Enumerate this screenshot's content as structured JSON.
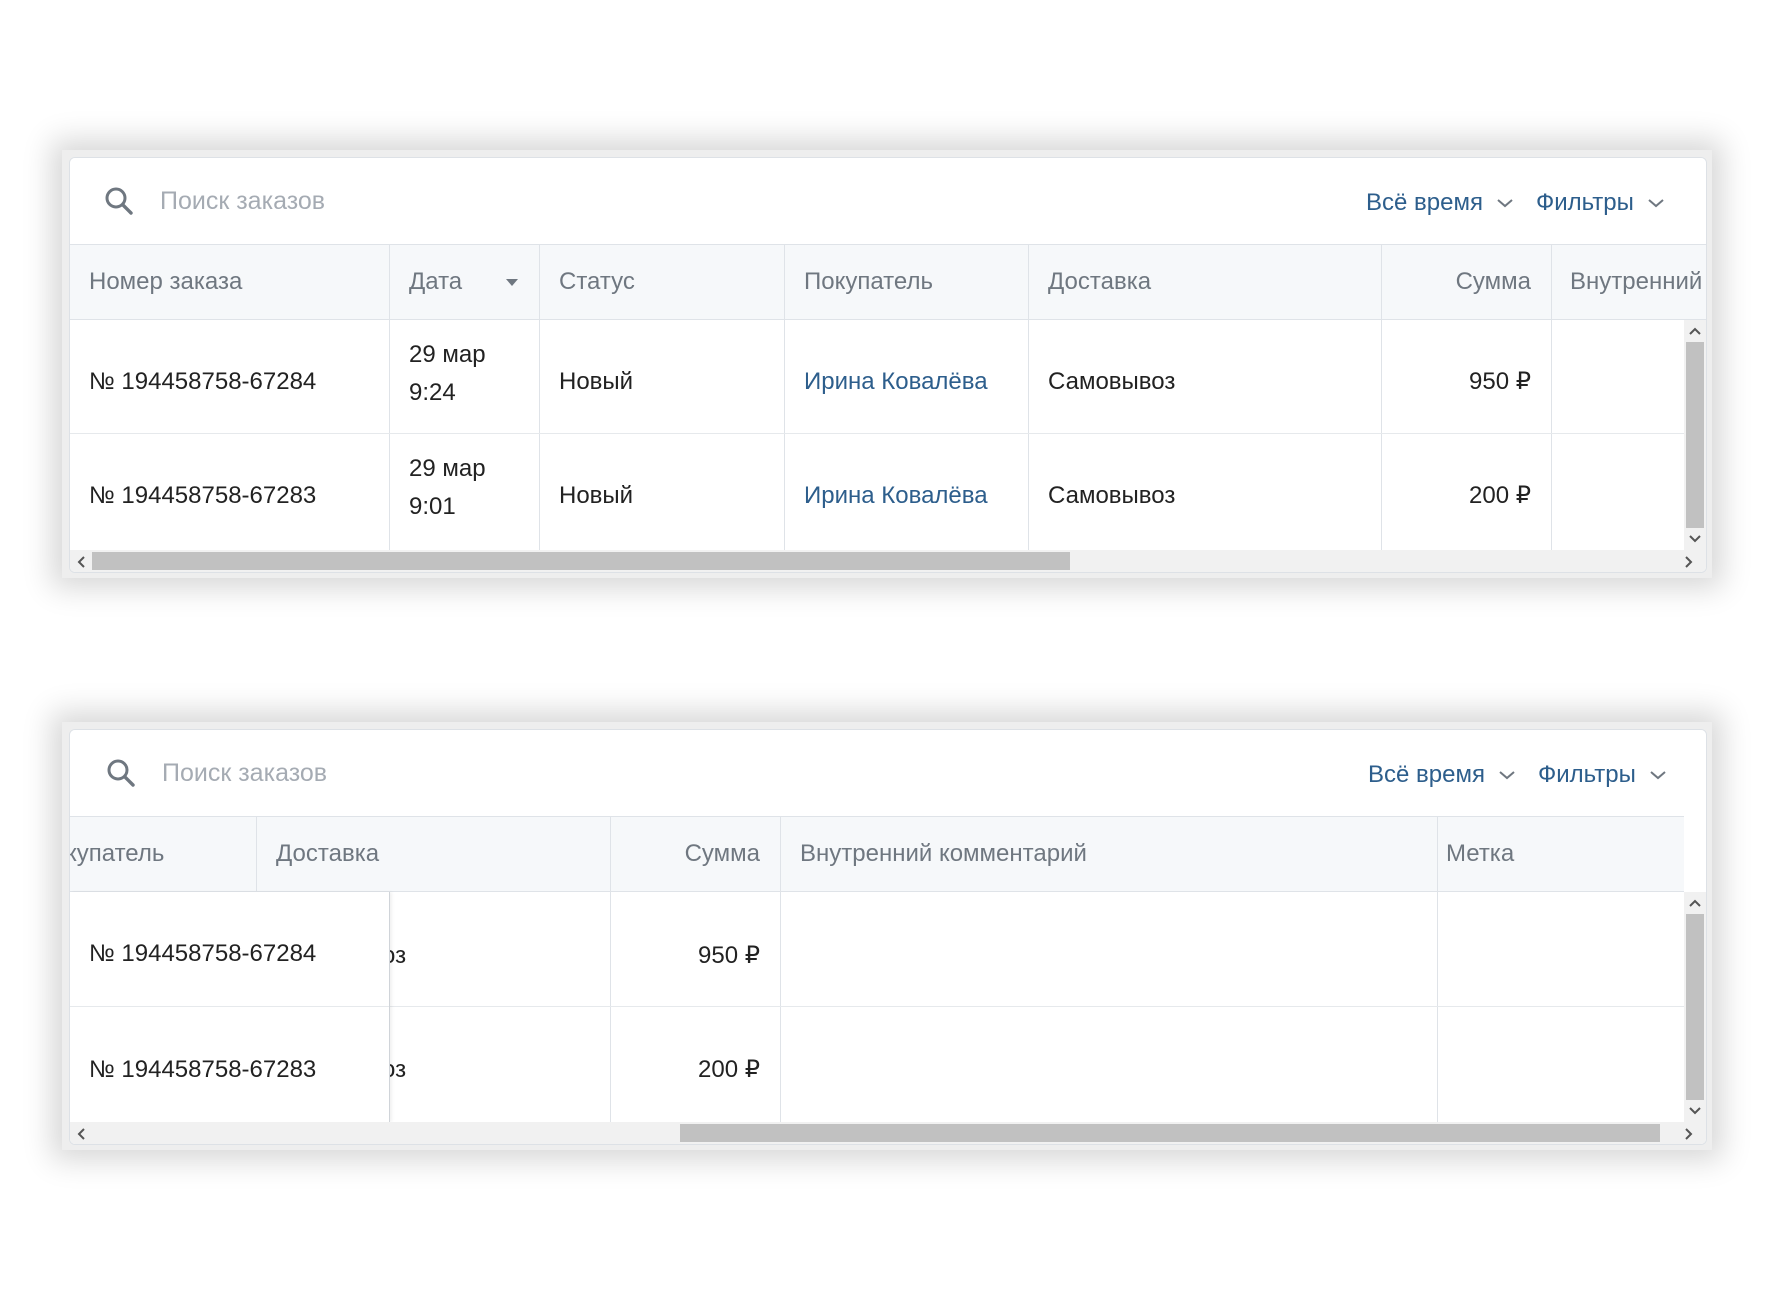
{
  "toolbar": {
    "search_placeholder": "Поиск заказов",
    "period_label": "Всё время",
    "filters_label": "Фильтры"
  },
  "panel1": {
    "headers": {
      "order": "Номер заказа",
      "date": "Дата",
      "status": "Статус",
      "buyer": "Покупатель",
      "delivery": "Доставка",
      "sum": "Сумма",
      "comment": "Внутренний"
    },
    "rows": [
      {
        "order": "№ 194458758-67284",
        "date_day": "29 мар",
        "date_time": "9:24",
        "status": "Новый",
        "buyer": "Ирина Ковалёва",
        "delivery": "Самовывоз",
        "sum": "950 ₽"
      },
      {
        "order": "№ 194458758-67283",
        "date_day": "29 мар",
        "date_time": "9:01",
        "status": "Новый",
        "buyer": "Ирина Ковалёва",
        "delivery": "Самовывоз",
        "sum": "200 ₽"
      }
    ]
  },
  "panel2": {
    "headers": {
      "buyer_partial": "купатель",
      "delivery": "Доставка",
      "sum": "Сумма",
      "comment": "Внутренний комментарий",
      "tag": "Метка"
    },
    "rows": [
      {
        "order": "№ 194458758-67284",
        "delivery_partial": "оз",
        "sum": "950 ₽"
      },
      {
        "order": "№ 194458758-67283",
        "delivery_partial": "оз",
        "sum": "200 ₽"
      }
    ]
  },
  "scroll": {
    "panel1_horizontal_fraction": 0.0,
    "panel2_horizontal_fraction": 1.0
  },
  "colors": {
    "link": "#2d5e8c",
    "header_text": "#6f7780",
    "placeholder": "#a5abb3"
  }
}
